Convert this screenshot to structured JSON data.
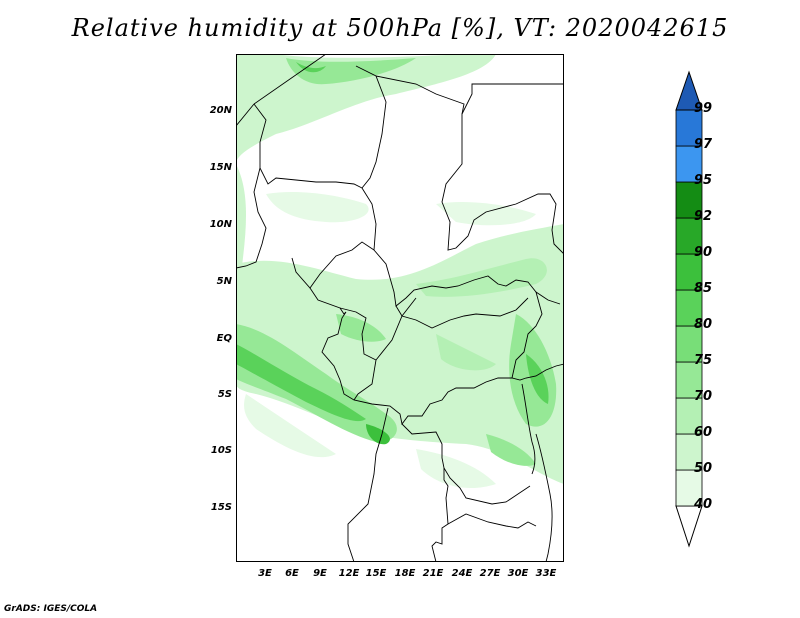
{
  "title": "Relative humidity at 500hPa [%], VT: 2020042615",
  "credit": "GrADS: IGES/COLA",
  "latitude_labels": [
    "20N",
    "15N",
    "10N",
    "5N",
    "EQ",
    "5S",
    "10S",
    "15S"
  ],
  "longitude_labels": [
    "3E",
    "6E",
    "9E",
    "12E",
    "15E",
    "18E",
    "21E",
    "24E",
    "27E",
    "30E",
    "33E"
  ],
  "colorbar": {
    "levels": [
      "40",
      "50",
      "60",
      "70",
      "75",
      "80",
      "85",
      "90",
      "92",
      "95",
      "97",
      "99"
    ],
    "colors": [
      "#e6fae6",
      "#cdf5cd",
      "#b4f0b4",
      "#96e896",
      "#78de78",
      "#5ad25a",
      "#3cc03c",
      "#28a828",
      "#148c14",
      "#3c96f0",
      "#2878d8",
      "#1e5ab4"
    ]
  }
}
